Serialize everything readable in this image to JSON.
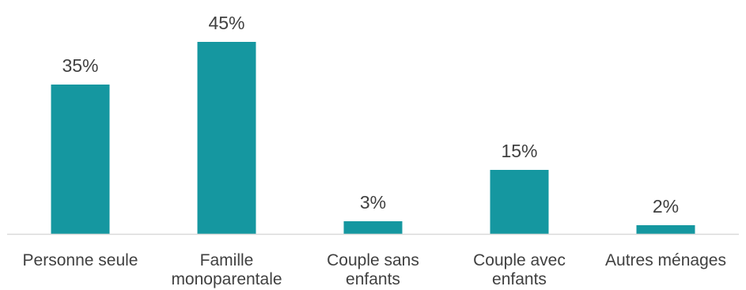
{
  "chart_data": {
    "type": "bar",
    "categories": [
      [
        "Personne seule"
      ],
      [
        "Famille",
        "monoparentale"
      ],
      [
        "Couple sans",
        "enfants"
      ],
      [
        "Couple avec",
        "enfants"
      ],
      [
        "Autres ménages"
      ]
    ],
    "values": [
      35,
      45,
      3,
      15,
      2
    ],
    "value_labels": [
      "35%",
      "45%",
      "3%",
      "15%",
      "2%"
    ],
    "unit": "%",
    "ylim": [
      0,
      45
    ],
    "grid": false,
    "legend": "none",
    "colors": {
      "bar": "#1597A0",
      "axis": "#D9D9D9",
      "text": "#404040"
    }
  }
}
